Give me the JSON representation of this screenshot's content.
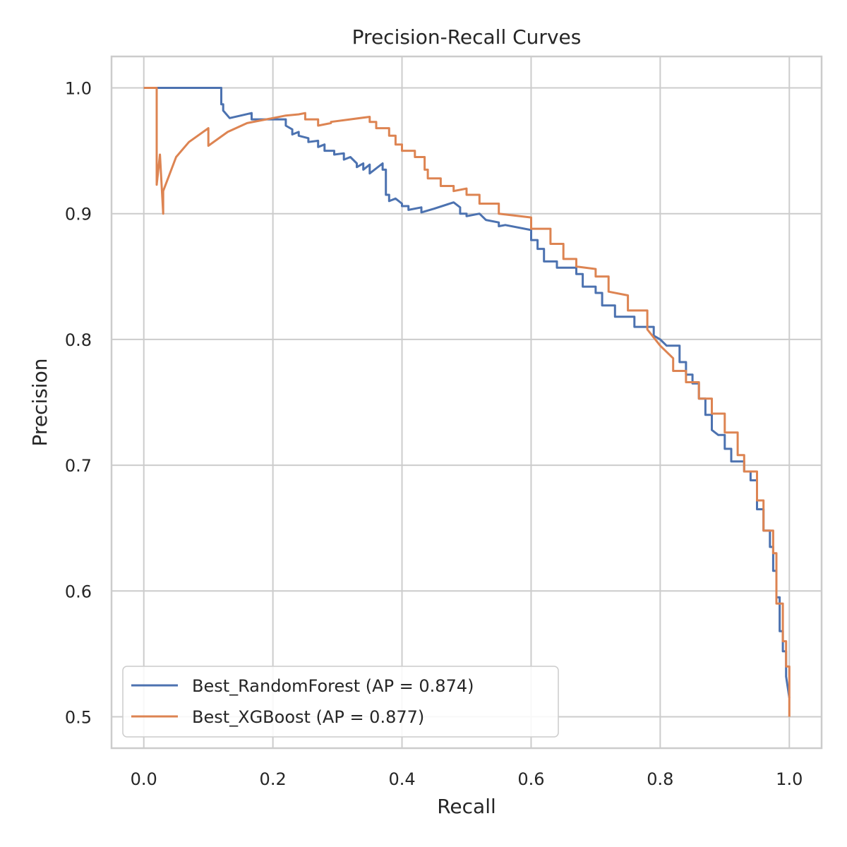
{
  "chart_data": {
    "type": "line",
    "title": "Precision-Recall Curves",
    "xlabel": "Recall",
    "ylabel": "Precision",
    "xlim": [
      -0.05,
      1.05
    ],
    "ylim": [
      0.475,
      1.025
    ],
    "xticks": [
      0.0,
      0.2,
      0.4,
      0.6,
      0.8,
      1.0
    ],
    "xtick_labels": [
      "0.0",
      "0.2",
      "0.4",
      "0.6",
      "0.8",
      "1.0"
    ],
    "yticks": [
      0.5,
      0.6,
      0.7,
      0.8,
      0.9,
      1.0
    ],
    "ytick_labels": [
      "0.5",
      "0.6",
      "0.7",
      "0.8",
      "0.9",
      "1.0"
    ],
    "grid": true,
    "legend_position": "lower-left",
    "series": [
      {
        "name": "Best_RandomForest (AP = 0.874)",
        "color": "#4c72b0",
        "x": [
          0.0,
          0.12,
          0.12,
          0.123,
          0.123,
          0.133,
          0.133,
          0.167,
          0.167,
          0.22,
          0.22,
          0.23,
          0.23,
          0.24,
          0.24,
          0.255,
          0.255,
          0.27,
          0.27,
          0.28,
          0.28,
          0.295,
          0.295,
          0.31,
          0.31,
          0.32,
          0.33,
          0.33,
          0.34,
          0.34,
          0.35,
          0.35,
          0.37,
          0.37,
          0.375,
          0.375,
          0.38,
          0.38,
          0.39,
          0.4,
          0.4,
          0.41,
          0.41,
          0.43,
          0.43,
          0.45,
          0.48,
          0.49,
          0.49,
          0.5,
          0.5,
          0.52,
          0.53,
          0.55,
          0.55,
          0.56,
          0.6,
          0.6,
          0.61,
          0.61,
          0.62,
          0.62,
          0.64,
          0.64,
          0.67,
          0.67,
          0.68,
          0.68,
          0.7,
          0.7,
          0.71,
          0.71,
          0.73,
          0.73,
          0.76,
          0.76,
          0.79,
          0.79,
          0.8,
          0.81,
          0.83,
          0.83,
          0.84,
          0.84,
          0.85,
          0.85,
          0.86,
          0.86,
          0.87,
          0.87,
          0.88,
          0.88,
          0.89,
          0.9,
          0.9,
          0.91,
          0.91,
          0.93,
          0.93,
          0.94,
          0.94,
          0.95,
          0.95,
          0.96,
          0.96,
          0.97,
          0.97,
          0.975,
          0.975,
          0.98,
          0.98,
          0.985,
          0.985,
          0.99,
          0.99,
          0.995,
          0.995,
          1.0
        ],
        "y": [
          1.0,
          1.0,
          0.987,
          0.987,
          0.982,
          0.976,
          0.976,
          0.98,
          0.975,
          0.975,
          0.97,
          0.967,
          0.963,
          0.965,
          0.962,
          0.96,
          0.957,
          0.958,
          0.953,
          0.955,
          0.95,
          0.95,
          0.947,
          0.948,
          0.943,
          0.945,
          0.94,
          0.937,
          0.94,
          0.935,
          0.939,
          0.932,
          0.94,
          0.935,
          0.935,
          0.915,
          0.915,
          0.91,
          0.912,
          0.908,
          0.906,
          0.906,
          0.903,
          0.905,
          0.901,
          0.904,
          0.909,
          0.905,
          0.9,
          0.9,
          0.898,
          0.9,
          0.895,
          0.893,
          0.89,
          0.891,
          0.887,
          0.879,
          0.879,
          0.872,
          0.872,
          0.862,
          0.862,
          0.857,
          0.857,
          0.852,
          0.852,
          0.842,
          0.842,
          0.837,
          0.837,
          0.827,
          0.827,
          0.818,
          0.818,
          0.81,
          0.81,
          0.803,
          0.8,
          0.795,
          0.795,
          0.782,
          0.782,
          0.772,
          0.772,
          0.765,
          0.765,
          0.753,
          0.753,
          0.74,
          0.74,
          0.728,
          0.724,
          0.724,
          0.713,
          0.713,
          0.703,
          0.703,
          0.695,
          0.695,
          0.688,
          0.688,
          0.665,
          0.665,
          0.648,
          0.648,
          0.635,
          0.635,
          0.616,
          0.616,
          0.595,
          0.595,
          0.568,
          0.568,
          0.552,
          0.552,
          0.532,
          0.515
        ]
      },
      {
        "name": "Best_XGBoost (AP = 0.877)",
        "color": "#dd8452",
        "x": [
          0.0,
          0.02,
          0.02,
          0.025,
          0.03,
          0.03,
          0.05,
          0.07,
          0.1,
          0.1,
          0.13,
          0.16,
          0.2,
          0.22,
          0.24,
          0.25,
          0.25,
          0.27,
          0.27,
          0.29,
          0.29,
          0.35,
          0.35,
          0.36,
          0.36,
          0.38,
          0.38,
          0.39,
          0.39,
          0.4,
          0.4,
          0.42,
          0.42,
          0.435,
          0.435,
          0.44,
          0.44,
          0.46,
          0.46,
          0.48,
          0.48,
          0.5,
          0.5,
          0.52,
          0.52,
          0.55,
          0.55,
          0.6,
          0.6,
          0.63,
          0.63,
          0.65,
          0.65,
          0.67,
          0.67,
          0.7,
          0.7,
          0.72,
          0.72,
          0.75,
          0.75,
          0.78,
          0.78,
          0.8,
          0.8,
          0.82,
          0.82,
          0.84,
          0.84,
          0.86,
          0.86,
          0.88,
          0.88,
          0.9,
          0.9,
          0.92,
          0.92,
          0.93,
          0.93,
          0.95,
          0.95,
          0.96,
          0.96,
          0.975,
          0.975,
          0.98,
          0.98,
          0.99,
          0.99,
          0.995,
          0.995,
          1.0,
          1.0
        ],
        "y": [
          1.0,
          1.0,
          0.923,
          0.947,
          0.9,
          0.918,
          0.945,
          0.957,
          0.968,
          0.954,
          0.965,
          0.972,
          0.976,
          0.978,
          0.979,
          0.98,
          0.975,
          0.975,
          0.97,
          0.972,
          0.973,
          0.977,
          0.973,
          0.973,
          0.968,
          0.968,
          0.962,
          0.962,
          0.955,
          0.955,
          0.95,
          0.95,
          0.945,
          0.945,
          0.935,
          0.935,
          0.928,
          0.928,
          0.922,
          0.922,
          0.918,
          0.92,
          0.915,
          0.915,
          0.908,
          0.908,
          0.9,
          0.897,
          0.888,
          0.888,
          0.876,
          0.876,
          0.864,
          0.864,
          0.858,
          0.856,
          0.85,
          0.85,
          0.838,
          0.835,
          0.823,
          0.823,
          0.808,
          0.795,
          0.795,
          0.785,
          0.775,
          0.775,
          0.766,
          0.766,
          0.753,
          0.753,
          0.741,
          0.741,
          0.726,
          0.726,
          0.708,
          0.708,
          0.695,
          0.695,
          0.672,
          0.672,
          0.648,
          0.648,
          0.63,
          0.63,
          0.59,
          0.59,
          0.56,
          0.56,
          0.54,
          0.54,
          0.5
        ]
      }
    ]
  }
}
